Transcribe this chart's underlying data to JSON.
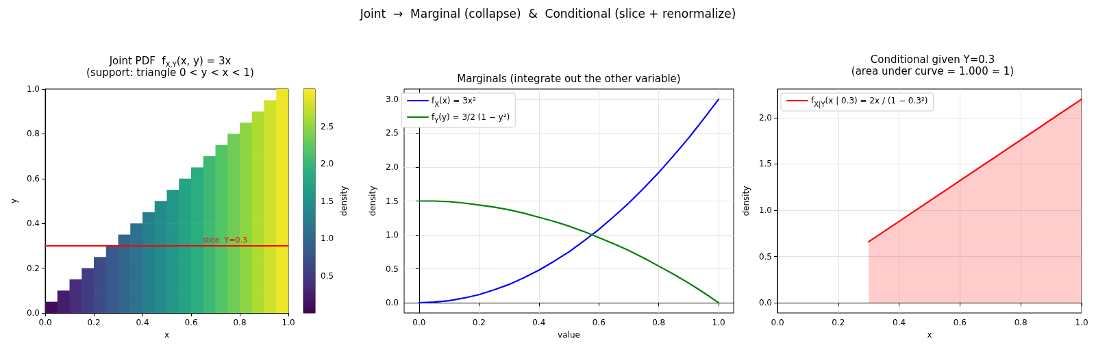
{
  "chart_data": [
    {
      "type": "other",
      "title": "Joint  →  Marginal (collapse)  &  Conditional (slice + renormalize)"
    },
    {
      "type": "heatmap",
      "title": "Joint PDF  f$_{X,Y}$(x, y) = 3x",
      "subtitle": "(support: triangle 0 < y < x < 1)",
      "xlabel": "x",
      "ylabel": "y",
      "clabel": "density",
      "xlim": [
        0,
        1
      ],
      "ylim": [
        0,
        1
      ],
      "xticks": [
        {
          "value": 0,
          "label": "0.0"
        },
        {
          "value": 0.2,
          "label": "0.2"
        },
        {
          "value": 0.4,
          "label": "0.4"
        },
        {
          "value": 0.6,
          "label": "0.6"
        },
        {
          "value": 0.8,
          "label": "0.8"
        },
        {
          "value": 1,
          "label": "1.0"
        }
      ],
      "yticks": [
        {
          "value": 0,
          "label": "0.0"
        },
        {
          "value": 0.2,
          "label": "0.2"
        },
        {
          "value": 0.4,
          "label": "0.4"
        },
        {
          "value": 0.6,
          "label": "0.6"
        },
        {
          "value": 0.8,
          "label": "0.8"
        },
        {
          "value": 1,
          "label": "1.0"
        }
      ],
      "clim": [
        0,
        3
      ],
      "cticks": [
        0.5,
        {
          "value": 1,
          "label": "1.0"
        },
        1.5,
        {
          "value": 2,
          "label": "2.0"
        },
        2.5
      ],
      "cells": [
        [
          null,
          null,
          null,
          null,
          null,
          null,
          null,
          null,
          null,
          null,
          null,
          null,
          null,
          null,
          null,
          null,
          null,
          null,
          null,
          2.93
        ],
        [
          null,
          null,
          null,
          null,
          null,
          null,
          null,
          null,
          null,
          null,
          null,
          null,
          null,
          null,
          null,
          null,
          null,
          null,
          2.78,
          2.93
        ],
        [
          null,
          null,
          null,
          null,
          null,
          null,
          null,
          null,
          null,
          null,
          null,
          null,
          null,
          null,
          null,
          null,
          null,
          2.63,
          2.78,
          2.93
        ],
        [
          null,
          null,
          null,
          null,
          null,
          null,
          null,
          null,
          null,
          null,
          null,
          null,
          null,
          null,
          null,
          null,
          2.48,
          2.63,
          2.78,
          2.93
        ],
        [
          null,
          null,
          null,
          null,
          null,
          null,
          null,
          null,
          null,
          null,
          null,
          null,
          null,
          null,
          null,
          2.33,
          2.48,
          2.63,
          2.78,
          2.93
        ],
        [
          null,
          null,
          null,
          null,
          null,
          null,
          null,
          null,
          null,
          null,
          null,
          null,
          null,
          null,
          2.18,
          2.33,
          2.48,
          2.63,
          2.78,
          2.93
        ],
        [
          null,
          null,
          null,
          null,
          null,
          null,
          null,
          null,
          null,
          null,
          null,
          null,
          null,
          2.03,
          2.18,
          2.33,
          2.48,
          2.63,
          2.78,
          2.93
        ],
        [
          null,
          null,
          null,
          null,
          null,
          null,
          null,
          null,
          null,
          null,
          null,
          null,
          1.88,
          2.03,
          2.18,
          2.33,
          2.48,
          2.63,
          2.78,
          2.93
        ],
        [
          null,
          null,
          null,
          null,
          null,
          null,
          null,
          null,
          null,
          null,
          null,
          1.73,
          1.88,
          2.03,
          2.18,
          2.33,
          2.48,
          2.63,
          2.78,
          2.93
        ],
        [
          null,
          null,
          null,
          null,
          null,
          null,
          null,
          null,
          null,
          null,
          1.58,
          1.73,
          1.88,
          2.03,
          2.18,
          2.33,
          2.48,
          2.63,
          2.78,
          2.93
        ],
        [
          null,
          null,
          null,
          null,
          null,
          null,
          null,
          null,
          null,
          1.43,
          1.58,
          1.73,
          1.88,
          2.03,
          2.18,
          2.33,
          2.48,
          2.63,
          2.78,
          2.93
        ],
        [
          null,
          null,
          null,
          null,
          null,
          null,
          null,
          null,
          1.28,
          1.43,
          1.58,
          1.73,
          1.88,
          2.03,
          2.18,
          2.33,
          2.48,
          2.63,
          2.78,
          2.93
        ],
        [
          null,
          null,
          null,
          null,
          null,
          null,
          null,
          1.13,
          1.28,
          1.43,
          1.58,
          1.73,
          1.88,
          2.03,
          2.18,
          2.33,
          2.48,
          2.63,
          2.78,
          2.93
        ],
        [
          null,
          null,
          null,
          null,
          null,
          null,
          0.98,
          1.13,
          1.28,
          1.43,
          1.58,
          1.73,
          1.88,
          2.03,
          2.18,
          2.33,
          2.48,
          2.63,
          2.78,
          2.93
        ],
        [
          null,
          null,
          null,
          null,
          null,
          0.83,
          0.98,
          1.13,
          1.28,
          1.43,
          1.58,
          1.73,
          1.88,
          2.03,
          2.18,
          2.33,
          2.48,
          2.63,
          2.78,
          2.93
        ],
        [
          null,
          null,
          null,
          null,
          0.68,
          0.83,
          0.98,
          1.13,
          1.28,
          1.43,
          1.58,
          1.73,
          1.88,
          2.03,
          2.18,
          2.33,
          2.48,
          2.63,
          2.78,
          2.93
        ],
        [
          null,
          null,
          null,
          0.53,
          0.68,
          0.83,
          0.98,
          1.13,
          1.28,
          1.43,
          1.58,
          1.73,
          1.88,
          2.03,
          2.18,
          2.33,
          2.48,
          2.63,
          2.78,
          2.93
        ],
        [
          null,
          null,
          0.38,
          0.53,
          0.68,
          0.83,
          0.98,
          1.13,
          1.28,
          1.43,
          1.58,
          1.73,
          1.88,
          2.03,
          2.18,
          2.33,
          2.48,
          2.63,
          2.78,
          2.93
        ],
        [
          null,
          0.23,
          0.38,
          0.53,
          0.68,
          0.83,
          0.98,
          1.13,
          1.28,
          1.43,
          1.58,
          1.73,
          1.88,
          2.03,
          2.18,
          2.33,
          2.48,
          2.63,
          2.78,
          2.93
        ],
        [
          0.08,
          0.23,
          0.38,
          0.53,
          0.68,
          0.83,
          0.98,
          1.13,
          1.28,
          1.43,
          1.58,
          1.73,
          1.88,
          2.03,
          2.18,
          2.33,
          2.48,
          2.63,
          2.78,
          2.93
        ]
      ],
      "ref_lines": [
        {
          "axis": "y",
          "value": 0.3,
          "label": "slice  Y=0.3",
          "color": "#ff0000"
        }
      ]
    },
    {
      "type": "line",
      "title": "Marginals (integrate out the other variable)",
      "xlabel": "value",
      "ylabel": "density",
      "xlim": [
        -0.05,
        1.05
      ],
      "ylim": [
        -0.15,
        3.15
      ],
      "xticks": [
        {
          "value": 0,
          "label": "0.0"
        },
        {
          "value": 0.2,
          "label": "0.2"
        },
        {
          "value": 0.4,
          "label": "0.4"
        },
        {
          "value": 0.6,
          "label": "0.6"
        },
        {
          "value": 0.8,
          "label": "0.8"
        },
        {
          "value": 1,
          "label": "1.0"
        }
      ],
      "yticks": [
        {
          "value": 0,
          "label": "0.0"
        },
        0.5,
        {
          "value": 1,
          "label": "1.0"
        },
        1.5,
        {
          "value": 2,
          "label": "2.0"
        },
        2.5,
        {
          "value": 3,
          "label": "3.0"
        }
      ],
      "grid": true,
      "legend": "top left",
      "x": [
        0,
        0.05,
        0.1,
        0.15,
        0.2,
        0.25,
        0.3,
        0.35,
        0.4,
        0.45,
        0.5,
        0.55,
        0.6,
        0.65,
        0.7,
        0.75,
        0.8,
        0.85,
        0.9,
        0.95,
        1
      ],
      "series": [
        {
          "name": "f$_{X}$(x) = 3x²",
          "color": "#0000ff",
          "values": [
            0,
            0.01,
            0.03,
            0.07,
            0.12,
            0.19,
            0.27,
            0.37,
            0.48,
            0.61,
            0.75,
            0.91,
            1.08,
            1.27,
            1.47,
            1.69,
            1.92,
            2.17,
            2.43,
            2.71,
            3
          ]
        },
        {
          "name": "f$_{Y}$(y) = 3/2 (1 − y²)",
          "color": "#008000",
          "values": [
            1.5,
            1.5,
            1.49,
            1.47,
            1.44,
            1.41,
            1.37,
            1.32,
            1.26,
            1.2,
            1.13,
            1.05,
            0.96,
            0.87,
            0.77,
            0.66,
            0.54,
            0.42,
            0.29,
            0.15,
            0
          ]
        }
      ]
    },
    {
      "type": "area",
      "title": "Conditional given Y=0.3",
      "subtitle": "(area under curve = 1.000 ≈ 1)",
      "xlabel": "x",
      "ylabel": "density",
      "xlim": [
        0,
        1
      ],
      "ylim": [
        -0.11,
        2.31
      ],
      "xticks": [
        {
          "value": 0,
          "label": "0.0"
        },
        {
          "value": 0.2,
          "label": "0.2"
        },
        {
          "value": 0.4,
          "label": "0.4"
        },
        {
          "value": 0.6,
          "label": "0.6"
        },
        {
          "value": 0.8,
          "label": "0.8"
        },
        {
          "value": 1,
          "label": "1.0"
        }
      ],
      "yticks": [
        {
          "value": 0,
          "label": "0.0"
        },
        0.5,
        {
          "value": 1,
          "label": "1.0"
        },
        1.5,
        {
          "value": 2,
          "label": "2.0"
        }
      ],
      "grid": true,
      "legend": "top left",
      "x": [
        0.3,
        1
      ],
      "series": [
        {
          "name": "f$_{X|Y}$(x | 0.3) = 2x / (1 − 0.3²)",
          "color": "#ff0000",
          "values": [
            0.66,
            2.2
          ]
        }
      ]
    }
  ]
}
